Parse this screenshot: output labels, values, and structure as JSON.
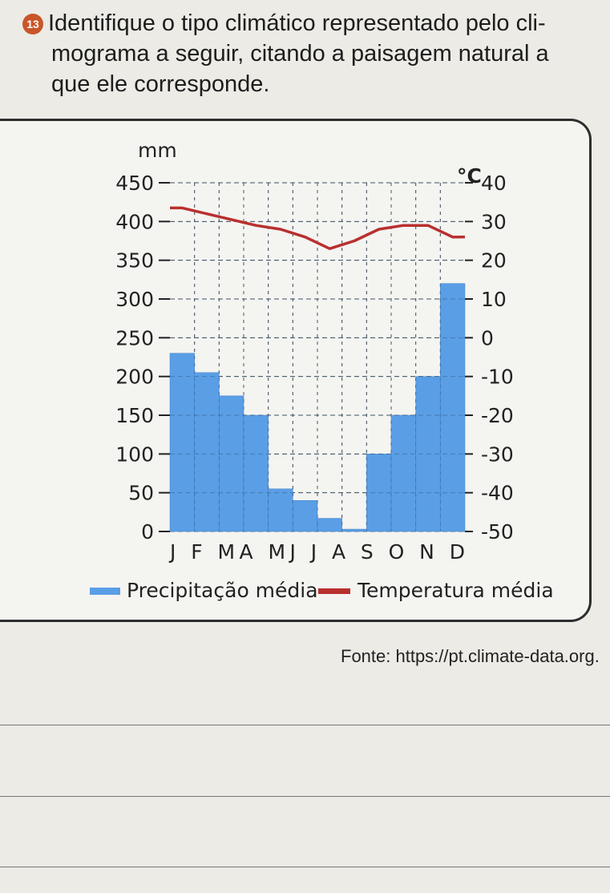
{
  "question": {
    "number": "13",
    "line1": "Identifique o tipo climático representado pelo cli-",
    "line2": "mograma a seguir, citando a paisagem natural a",
    "line3": "que ele corresponde."
  },
  "chart_data": {
    "type": "bar",
    "categories": [
      "J",
      "F",
      "M",
      "A",
      "M",
      "J",
      "J",
      "A",
      "S",
      "O",
      "N",
      "D"
    ],
    "category_label_text": "J F MA MJ J A S O N D",
    "series": [
      {
        "name": "Precipitação média",
        "type": "bar",
        "axis": "left",
        "color": "#5a9ee6",
        "values": [
          230,
          205,
          175,
          150,
          55,
          40,
          17,
          3,
          100,
          150,
          200,
          320
        ]
      },
      {
        "name": "Temperatura média",
        "type": "line",
        "axis": "right",
        "color": "#b8302e",
        "values": [
          33.5,
          32,
          30.5,
          29,
          28,
          26,
          23,
          25,
          28,
          29,
          29,
          26
        ]
      }
    ],
    "y_left": {
      "label": "mm",
      "ticks": [
        0,
        50,
        100,
        150,
        200,
        250,
        300,
        350,
        400,
        450
      ],
      "range": [
        0,
        450
      ]
    },
    "y_right": {
      "label": "°C",
      "ticks": [
        40,
        30,
        20,
        10,
        0,
        -10,
        -20,
        -30,
        -40,
        -50
      ],
      "range": [
        -50,
        40
      ]
    },
    "grid": true,
    "legend": {
      "placement": "bottom",
      "precipitation_label": "Precipitação média",
      "temperature_label": "Temperatura média"
    }
  },
  "source": "Fonte: https://pt.climate-data.org."
}
